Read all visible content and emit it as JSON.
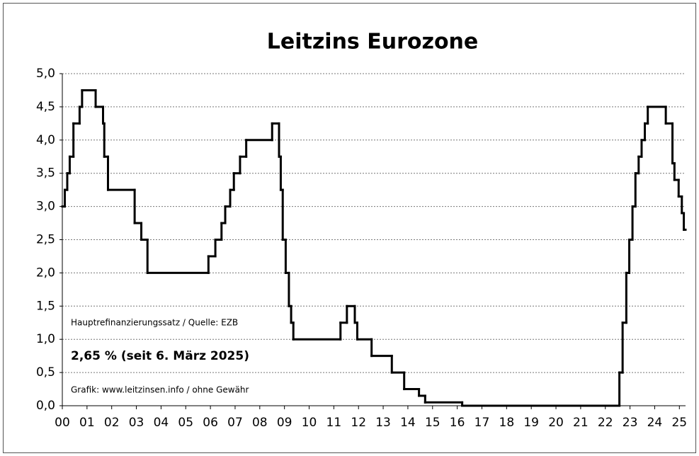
{
  "chart_data": {
    "type": "step",
    "title": "Leitzins Eurozone",
    "annotations": [
      "Hauptrefinanzierungssatz / Quelle: EZB",
      "2,65 % (seit 6. März 2025)",
      "Grafik: www.leitzinsen.info / ohne Gewähr"
    ],
    "series": [
      {
        "color": "#000000",
        "x": [
          2000.0,
          2000.1,
          2000.2,
          2000.3,
          2000.45,
          2000.7,
          2000.8,
          2001.35,
          2001.65,
          2001.7,
          2001.85,
          2002.93,
          2003.2,
          2003.45,
          2005.92,
          2006.2,
          2006.45,
          2006.6,
          2006.8,
          2006.95,
          2007.2,
          2007.45,
          2008.5,
          2008.78,
          2008.85,
          2008.93,
          2009.05,
          2009.18,
          2009.27,
          2009.36,
          2011.27,
          2011.53,
          2011.85,
          2011.95,
          2012.53,
          2013.35,
          2013.85,
          2014.45,
          2014.7,
          2016.2,
          2022.57,
          2022.7,
          2022.85,
          2022.97,
          2023.1,
          2023.22,
          2023.35,
          2023.47,
          2023.6,
          2023.72,
          2024.45,
          2024.72,
          2024.8,
          2024.97,
          2025.1,
          2025.18
        ],
        "values": [
          3.0,
          3.25,
          3.5,
          3.75,
          4.25,
          4.5,
          4.75,
          4.5,
          4.25,
          3.75,
          3.25,
          2.75,
          2.5,
          2.0,
          2.25,
          2.5,
          2.75,
          3.0,
          3.25,
          3.5,
          3.75,
          4.0,
          4.25,
          3.75,
          3.25,
          2.5,
          2.0,
          1.5,
          1.25,
          1.0,
          1.25,
          1.5,
          1.25,
          1.0,
          0.75,
          0.5,
          0.25,
          0.15,
          0.05,
          0.0,
          0.5,
          1.25,
          2.0,
          2.5,
          3.0,
          3.5,
          3.75,
          4.0,
          4.25,
          4.5,
          4.25,
          3.65,
          3.4,
          3.15,
          2.9,
          2.65
        ]
      }
    ],
    "xlim": [
      2000,
      2025.25
    ],
    "xticks": [
      {
        "value": 2000,
        "label": "00"
      },
      {
        "value": 2001,
        "label": "01"
      },
      {
        "value": 2002,
        "label": "02"
      },
      {
        "value": 2003,
        "label": "03"
      },
      {
        "value": 2004,
        "label": "04"
      },
      {
        "value": 2005,
        "label": "05"
      },
      {
        "value": 2006,
        "label": "06"
      },
      {
        "value": 2007,
        "label": "07"
      },
      {
        "value": 2008,
        "label": "08"
      },
      {
        "value": 2009,
        "label": "09"
      },
      {
        "value": 2010,
        "label": "10"
      },
      {
        "value": 2011,
        "label": "11"
      },
      {
        "value": 2012,
        "label": "12"
      },
      {
        "value": 2013,
        "label": "13"
      },
      {
        "value": 2014,
        "label": "14"
      },
      {
        "value": 2015,
        "label": "15"
      },
      {
        "value": 2016,
        "label": "16"
      },
      {
        "value": 2017,
        "label": "17"
      },
      {
        "value": 2018,
        "label": "18"
      },
      {
        "value": 2019,
        "label": "19"
      },
      {
        "value": 2020,
        "label": "20"
      },
      {
        "value": 2021,
        "label": "21"
      },
      {
        "value": 2022,
        "label": "22"
      },
      {
        "value": 2023,
        "label": "23"
      },
      {
        "value": 2024,
        "label": "24"
      },
      {
        "value": 2025,
        "label": "25"
      }
    ],
    "ylim": [
      0,
      5
    ],
    "yticks": [
      {
        "value": 0,
        "label": "0,0"
      },
      {
        "value": 0.5,
        "label": "0,5"
      },
      {
        "value": 1,
        "label": "1,0"
      },
      {
        "value": 1.5,
        "label": "1,5"
      },
      {
        "value": 2,
        "label": "2,0"
      },
      {
        "value": 2.5,
        "label": "2,5"
      },
      {
        "value": 3,
        "label": "3,0"
      },
      {
        "value": 3.5,
        "label": "3,5"
      },
      {
        "value": 4,
        "label": "4,0"
      },
      {
        "value": 4.5,
        "label": "4,5"
      },
      {
        "value": 5,
        "label": "5,0"
      }
    ],
    "grid": true
  }
}
